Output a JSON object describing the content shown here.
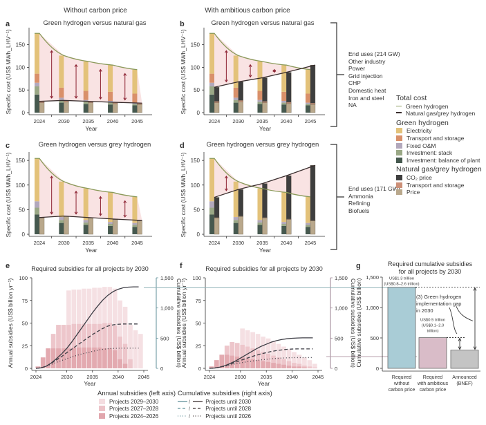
{
  "column_headers": {
    "left": "Without carbon price",
    "right": "With ambitious carbon price"
  },
  "colors": {
    "electricity": "#e3c27a",
    "transport_storage_green": "#d9906a",
    "fixed_om": "#b2a8bc",
    "investment_stack": "#9aa886",
    "investment_bop": "#46594f",
    "co2_price": "#3e3e3e",
    "transport_storage_fossil": "#cc9078",
    "price": "#b9a88c",
    "gap_fill": "#f7d9d9",
    "green_line": "#8a9a5a",
    "fossil_line": "#3a2e2e",
    "arrow": "#8b2030",
    "no_cp_bar": "#a9ccd6",
    "cp_bar": "#d9bcc8",
    "bnef_bar": "#c4c4c4",
    "teal_axis": "#5f8f98",
    "mauve_axis": "#9a8090"
  },
  "brackets": [
    {
      "title": "End uses (214 GW)",
      "items": [
        "Other industry",
        "Power",
        "Grid injection",
        "CHP",
        "Domestic heat",
        "Iron and steel",
        "NA"
      ]
    },
    {
      "title": "End uses (171 GW)",
      "items": [
        "Ammonia",
        "Refining",
        "Biofuels"
      ]
    }
  ],
  "legend": {
    "total_cost": {
      "title": "Total cost",
      "items": [
        "Green hydrogen",
        "Natural gas/grey hydrogen"
      ]
    },
    "green_h2": {
      "title": "Green hydrogen",
      "items": [
        "Electricity",
        "Transport and storage",
        "Fixed O&M",
        "Investment: stack",
        "Investment: balance of plant"
      ]
    },
    "fossil": {
      "title": "Natural gas/grey hydrogen",
      "items": [
        "CO₂ price",
        "Transport and storage",
        "Price"
      ]
    }
  },
  "bottom_legend": {
    "annual": {
      "title": "Annual subsidies (left axis)",
      "items": [
        "Projects 2029–2030",
        "Projects 2027–2028",
        "Projects 2024–2026"
      ]
    },
    "cumulative": {
      "title": "Cumulative subsidies (right axis)",
      "items": [
        "Projects until 2030",
        "Projects until 2028",
        "Projects until 2026"
      ]
    }
  },
  "chart_data": [
    {
      "panel": "a",
      "type": "bar",
      "title": "Green hydrogen versus natural gas",
      "xlabel": "Year",
      "ylabel": "Specific cost (US$ MWh_LHV⁻¹)",
      "ylim": [
        0,
        180
      ],
      "yticks": [
        0,
        50,
        100,
        150
      ],
      "categories": [
        "2024",
        "2030",
        "2035",
        "2040",
        "2045"
      ],
      "green_stack": {
        "investment_bop": [
          40,
          22,
          19,
          18,
          16
        ],
        "investment_stack": [
          18,
          6,
          5,
          4,
          3
        ],
        "fixed_om": [
          8,
          5,
          4,
          4,
          3
        ],
        "transport_storage": [
          20,
          22,
          20,
          20,
          20
        ],
        "electricity": [
          89,
          71,
          65,
          59,
          53
        ]
      },
      "green_total": [
        175,
        126,
        113,
        105,
        95
      ],
      "fossil_stack": {
        "price": [
          22,
          24,
          22,
          20,
          18
        ],
        "transport_storage": [
          3,
          3,
          3,
          3,
          3
        ],
        "co2_price": [
          0,
          0,
          0,
          0,
          0
        ]
      },
      "fossil_total": [
        25,
        27,
        25,
        23,
        21
      ],
      "gap_arrows_at": [
        2027,
        2032.5,
        2037.5,
        2042.5
      ]
    },
    {
      "panel": "b",
      "type": "bar",
      "title": "Green hydrogen versus natural gas",
      "xlabel": "Year",
      "ylabel": "Specific cost (US$ MWh_LHV⁻¹)",
      "ylim": [
        0,
        180
      ],
      "yticks": [
        0,
        50,
        100,
        150
      ],
      "categories": [
        "2024",
        "2030",
        "2035",
        "2040",
        "2045"
      ],
      "green_stack": {
        "investment_bop": [
          40,
          22,
          19,
          18,
          16
        ],
        "investment_stack": [
          18,
          6,
          5,
          4,
          3
        ],
        "fixed_om": [
          8,
          5,
          4,
          4,
          3
        ],
        "transport_storage": [
          20,
          22,
          20,
          20,
          20
        ],
        "electricity": [
          89,
          71,
          65,
          59,
          53
        ]
      },
      "green_total": [
        175,
        126,
        113,
        105,
        95
      ],
      "fossil_stack": {
        "price": [
          22,
          24,
          22,
          20,
          18
        ],
        "transport_storage": [
          3,
          3,
          3,
          3,
          3
        ],
        "co2_price": [
          31,
          41,
          52,
          66,
          84
        ]
      },
      "fossil_total": [
        56,
        68,
        77,
        89,
        105
      ],
      "gap_arrows_at": [
        2027,
        2032.5,
        2037.5
      ]
    },
    {
      "panel": "c",
      "type": "bar",
      "title": "Green hydrogen versus grey hydrogen",
      "xlabel": "Year",
      "ylabel": "Specific cost (US$ MWh_LHV⁻¹)",
      "ylim": [
        0,
        160
      ],
      "yticks": [
        0,
        50,
        100,
        150
      ],
      "categories": [
        "2024",
        "2030",
        "2035",
        "2040",
        "2045"
      ],
      "green_stack": {
        "investment_bop": [
          40,
          23,
          19,
          17,
          15
        ],
        "investment_stack": [
          14,
          6,
          5,
          4,
          4
        ],
        "fixed_om": [
          13,
          6,
          5,
          4,
          4
        ],
        "transport_storage": [
          0,
          0,
          0,
          0,
          0
        ],
        "electricity": [
          87,
          72,
          64,
          60,
          53
        ]
      },
      "green_total": [
        154,
        107,
        93,
        85,
        76
      ],
      "fossil_stack": {
        "price": [
          33,
          36,
          33,
          30,
          27
        ],
        "transport_storage": [
          1,
          1,
          1,
          1,
          1
        ],
        "co2_price": [
          0,
          0,
          0,
          0,
          0
        ]
      },
      "fossil_total": [
        34,
        37,
        34,
        31,
        28
      ],
      "gap_arrows_at": [
        2027,
        2032.5,
        2037.5,
        2042.5
      ]
    },
    {
      "panel": "d",
      "type": "bar",
      "title": "Green hydrogen versus grey hydrogen",
      "xlabel": "Year",
      "ylabel": "Specific cost (US$ MWh_LHV⁻¹)",
      "ylim": [
        0,
        160
      ],
      "yticks": [
        0,
        50,
        100,
        150
      ],
      "categories": [
        "2024",
        "2030",
        "2035",
        "2040",
        "2045"
      ],
      "green_stack": {
        "investment_bop": [
          40,
          23,
          19,
          17,
          15
        ],
        "investment_stack": [
          14,
          6,
          5,
          4,
          4
        ],
        "fixed_om": [
          13,
          6,
          5,
          4,
          4
        ],
        "transport_storage": [
          0,
          0,
          0,
          0,
          0
        ],
        "electricity": [
          87,
          72,
          64,
          60,
          53
        ]
      },
      "green_total": [
        154,
        107,
        93,
        85,
        76
      ],
      "fossil_stack": {
        "price": [
          33,
          36,
          33,
          30,
          27
        ],
        "transport_storage": [
          1,
          1,
          1,
          1,
          1
        ],
        "co2_price": [
          41,
          54,
          69,
          88,
          112
        ]
      },
      "fossil_total": [
        75,
        91,
        103,
        119,
        140
      ],
      "gap_arrows_at": [
        2027
      ]
    },
    {
      "panel": "e",
      "type": "area",
      "title": "Required subsidies for all projects by 2030",
      "xlabel": "Year",
      "ylabel": "Annual subsidies (US$ billion yr⁻¹)",
      "ylabel_right": "Cumulative subsidies (US$ billion)",
      "ylim": [
        0,
        100
      ],
      "ylim_right": [
        0,
        1500
      ],
      "xticks": [
        2024,
        2030,
        2035,
        2040,
        2045
      ],
      "yticks": [
        0,
        25,
        50,
        75,
        100
      ],
      "yticks_right": [
        0,
        500,
        1000,
        1500
      ],
      "x_years": [
        2024,
        2025,
        2026,
        2027,
        2028,
        2029,
        2030,
        2031,
        2032,
        2033,
        2034,
        2035,
        2036,
        2037,
        2038,
        2039,
        2040,
        2041,
        2042,
        2043,
        2044
      ],
      "annual_series": [
        {
          "name": "Projects 2024–2026",
          "values": [
            2,
            12,
            22,
            22,
            22,
            22,
            22,
            23,
            23,
            23,
            23,
            23,
            23,
            22,
            22,
            20,
            10,
            5,
            0,
            0,
            0
          ]
        },
        {
          "name": "Projects 2027–2028",
          "values": [
            2,
            12,
            22,
            38,
            48,
            48,
            48,
            49,
            49,
            49,
            49,
            49,
            49,
            50,
            50,
            47,
            35,
            27,
            10,
            0,
            0
          ]
        },
        {
          "name": "Projects 2029–2030",
          "values": [
            2,
            12,
            22,
            38,
            48,
            48,
            86,
            87,
            87,
            88,
            88,
            89,
            89,
            90,
            90,
            88,
            75,
            68,
            48,
            42,
            38
          ]
        }
      ],
      "cumulative_series": [
        {
          "name": "Projects until 2030",
          "values": [
            0,
            8,
            35,
            90,
            160,
            240,
            330,
            440,
            560,
            680,
            800,
            920,
            1030,
            1130,
            1210,
            1270,
            1310,
            1335,
            1345,
            1350,
            1350
          ]
        },
        {
          "name": "Projects until 2028",
          "values": [
            0,
            8,
            35,
            85,
            140,
            195,
            260,
            320,
            380,
            440,
            500,
            560,
            610,
            660,
            700,
            720,
            730,
            735,
            735,
            735,
            735
          ]
        },
        {
          "name": "Projects until 2026",
          "values": [
            0,
            8,
            35,
            65,
            100,
            130,
            160,
            190,
            215,
            240,
            260,
            280,
            300,
            315,
            325,
            330,
            333,
            335,
            335,
            335,
            335
          ]
        }
      ],
      "reference_line_right": 1335
    },
    {
      "panel": "f",
      "type": "area",
      "title": "Required subsidies for all projects by 2030",
      "xlabel": "Year",
      "ylabel": "Annual subsidies (US$ billion yr⁻¹)",
      "ylabel_right": "Cumulative subsidies (US$ billion)",
      "ylim": [
        0,
        100
      ],
      "ylim_right": [
        0,
        1500
      ],
      "xticks": [
        2024,
        2030,
        2035,
        2040,
        2045
      ],
      "yticks": [
        0,
        25,
        50,
        75,
        100
      ],
      "yticks_right": [
        0,
        500,
        1000,
        1500
      ],
      "x_years": [
        2024,
        2025,
        2026,
        2027,
        2028,
        2029,
        2030,
        2031,
        2032,
        2033,
        2034,
        2035,
        2036,
        2037,
        2038,
        2039,
        2040,
        2041,
        2042,
        2043,
        2044
      ],
      "annual_series": [
        {
          "name": "Projects 2024–2026",
          "values": [
            2,
            9,
            15,
            15,
            14,
            13,
            12,
            11,
            10,
            9,
            8,
            7,
            6,
            5,
            4,
            3,
            2,
            2,
            1,
            0,
            0
          ]
        },
        {
          "name": "Projects 2027–2028",
          "values": [
            2,
            9,
            15,
            25,
            29,
            28,
            26,
            24,
            22,
            20,
            18,
            16,
            14,
            12,
            10,
            8,
            6,
            5,
            3,
            2,
            1
          ]
        },
        {
          "name": "Projects 2029–2030",
          "values": [
            2,
            9,
            15,
            25,
            29,
            28,
            44,
            42,
            40,
            38,
            35,
            33,
            30,
            27,
            24,
            21,
            18,
            15,
            12,
            9,
            5
          ]
        }
      ],
      "cumulative_series": [
        {
          "name": "Projects until 2030",
          "values": [
            0,
            5,
            20,
            45,
            80,
            120,
            170,
            220,
            270,
            320,
            365,
            400,
            435,
            460,
            478,
            490,
            498,
            502,
            505,
            505,
            505
          ]
        },
        {
          "name": "Projects until 2028",
          "values": [
            0,
            5,
            20,
            40,
            70,
            100,
            130,
            160,
            190,
            215,
            240,
            260,
            280,
            295,
            305,
            315,
            320,
            322,
            322,
            322,
            322
          ]
        },
        {
          "name": "Projects until 2026",
          "values": [
            0,
            5,
            20,
            35,
            55,
            75,
            90,
            105,
            118,
            130,
            140,
            150,
            158,
            165,
            170,
            174,
            177,
            178,
            178,
            178,
            178
          ]
        }
      ],
      "reference_line_right": 505,
      "reference_line_left_extension": 1335
    },
    {
      "panel": "g",
      "type": "bar",
      "title": "Required cumulative subsidies for all projects by 2030",
      "ylabel": "Cumulative subsidies (US$ billion)",
      "ylim": [
        0,
        1500
      ],
      "yticks": [
        0,
        500,
        1000,
        1500
      ],
      "categories": [
        "Required without carbon price",
        "Required with ambitious carbon price",
        "Announced (BNEF)"
      ],
      "values": [
        1335,
        505,
        300
      ],
      "labels": [
        [
          "US$1.3 trillion",
          "(US$0.8–2.6 trillion)"
        ],
        [
          "US$0.5 trillion",
          "(US$0.1–2.0",
          "trillion)"
        ],
        []
      ],
      "annotation": [
        "(3) Green hydrogen",
        "implementation gap",
        "in 2030"
      ]
    }
  ],
  "panel_letters": [
    "a",
    "b",
    "c",
    "d",
    "e",
    "f",
    "g"
  ]
}
